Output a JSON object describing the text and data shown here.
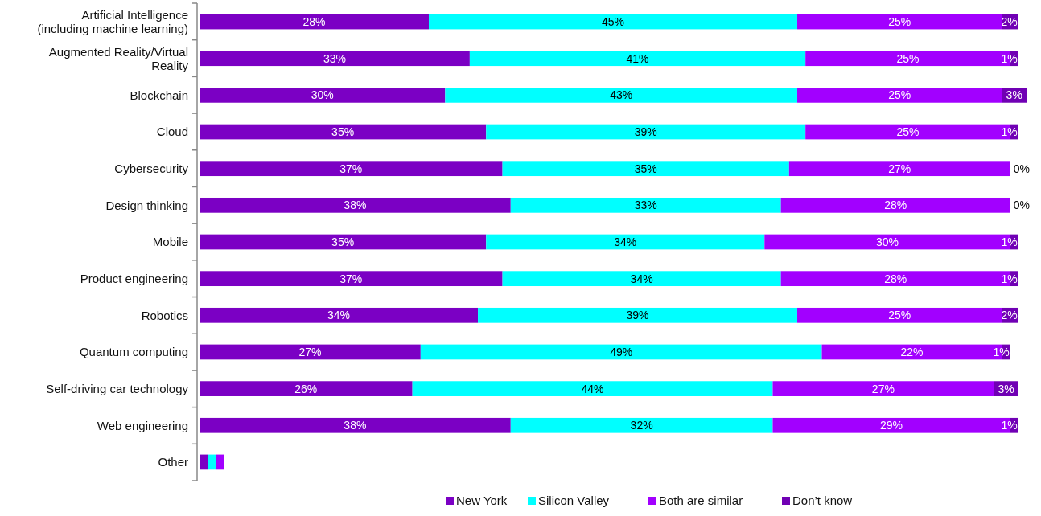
{
  "chart_data": {
    "type": "bar",
    "orientation": "horizontal",
    "stacked": true,
    "legend": "bottom",
    "xlim": [
      0,
      101
    ],
    "tick_labels": "y",
    "categories": [
      "Artificial Intelligence (including machine learning)",
      "Augmented Reality/Virtual Reality",
      "Blockchain",
      "Cloud",
      "Cybersecurity",
      "Design thinking",
      "Mobile",
      "Product engineering",
      "Robotics",
      "Quantum computing",
      "Self-driving car technology",
      "Web engineering",
      "Other"
    ],
    "series": [
      {
        "name": "New York",
        "color": "#7b00c4",
        "values": [
          28,
          33,
          30,
          35,
          37,
          38,
          35,
          37,
          34,
          27,
          26,
          38,
          1
        ],
        "value_labels": [
          "28%",
          "33%",
          "30%",
          "35%",
          "37%",
          "38%",
          "35%",
          "37%",
          "34%",
          "27%",
          "26%",
          "38%",
          null
        ]
      },
      {
        "name": "Silicon Valley",
        "color": "#00ffff",
        "values": [
          45,
          41,
          43,
          39,
          35,
          33,
          34,
          34,
          39,
          49,
          44,
          32,
          1
        ],
        "value_labels": [
          "45%",
          "41%",
          "43%",
          "39%",
          "35%",
          "33%",
          "34%",
          "34%",
          "39%",
          "49%",
          "44%",
          "32%",
          null
        ]
      },
      {
        "name": "Both are similar",
        "color": "#a200ff",
        "values": [
          25,
          25,
          25,
          25,
          27,
          28,
          30,
          28,
          25,
          22,
          27,
          29,
          1
        ],
        "value_labels": [
          "25%",
          "25%",
          "25%",
          "25%",
          "27%",
          "28%",
          "30%",
          "28%",
          "25%",
          "22%",
          "27%",
          "29%",
          null
        ]
      },
      {
        "name": "Don’t know",
        "color": "#7000b4",
        "values": [
          2,
          1,
          3,
          1,
          0,
          0,
          1,
          1,
          2,
          1,
          3,
          1,
          0
        ],
        "value_labels": [
          "2%",
          "1%",
          "3%",
          "1%",
          "0%",
          "0%",
          "1%",
          "1%",
          "2%",
          "1%",
          "3%",
          "1%",
          null
        ]
      }
    ]
  }
}
